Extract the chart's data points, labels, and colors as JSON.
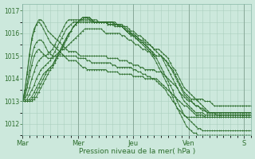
{
  "xlabel": "Pression niveau de la mer( hPa )",
  "bg_color": "#cce8dc",
  "grid_color": "#aacfbf",
  "line_color": "#2d6e2d",
  "ylim": [
    1011.5,
    1017.3
  ],
  "yticks": [
    1012,
    1013,
    1014,
    1015,
    1016,
    1017
  ],
  "x_day_labels": [
    "Mar",
    "Mer",
    "Jeu",
    "Ven",
    "S"
  ],
  "x_day_positions": [
    0,
    24,
    48,
    72,
    96
  ],
  "series": [
    [
      1013.0,
      1013.5,
      1014.2,
      1015.0,
      1015.8,
      1016.2,
      1016.4,
      1016.5,
      1016.4,
      1016.2,
      1016.0,
      1015.8,
      1015.6,
      1015.5,
      1015.4,
      1015.3,
      1015.2,
      1015.1,
      1015.0,
      1014.9,
      1014.8,
      1014.8,
      1014.8,
      1014.8,
      1014.7,
      1014.6,
      1014.5,
      1014.5,
      1014.4,
      1014.4,
      1014.4,
      1014.4,
      1014.4,
      1014.4,
      1014.4,
      1014.4,
      1014.4,
      1014.3,
      1014.3,
      1014.3,
      1014.3,
      1014.3,
      1014.2,
      1014.2,
      1014.2,
      1014.2,
      1014.2,
      1014.2,
      1014.1,
      1014.1,
      1014.1,
      1014.1,
      1014.1,
      1014.0,
      1014.0,
      1014.0,
      1014.0,
      1014.0,
      1014.0,
      1013.9,
      1013.8,
      1013.7,
      1013.6,
      1013.5,
      1013.4,
      1013.3,
      1013.2,
      1013.1,
      1013.0,
      1012.9,
      1012.8,
      1012.8,
      1012.7,
      1012.6,
      1012.5,
      1012.4,
      1012.4,
      1012.4,
      1012.4,
      1012.3,
      1012.3,
      1012.3,
      1012.3,
      1012.3,
      1012.3,
      1012.3,
      1012.3,
      1012.3,
      1012.3,
      1012.3,
      1012.3,
      1012.3,
      1012.3,
      1012.3,
      1012.3,
      1012.3,
      1012.3,
      1012.3,
      1012.3,
      1012.3
    ],
    [
      1013.0,
      1013.5,
      1014.3,
      1015.1,
      1015.7,
      1016.1,
      1016.4,
      1016.6,
      1016.6,
      1016.5,
      1016.3,
      1016.1,
      1016.0,
      1015.9,
      1015.8,
      1015.7,
      1015.6,
      1015.5,
      1015.4,
      1015.3,
      1015.2,
      1015.2,
      1015.2,
      1015.2,
      1015.1,
      1015.0,
      1015.0,
      1015.0,
      1015.0,
      1015.0,
      1015.0,
      1015.0,
      1015.0,
      1015.0,
      1015.0,
      1015.0,
      1015.0,
      1014.9,
      1014.9,
      1014.9,
      1014.9,
      1014.9,
      1014.8,
      1014.8,
      1014.8,
      1014.8,
      1014.7,
      1014.7,
      1014.6,
      1014.6,
      1014.6,
      1014.5,
      1014.5,
      1014.4,
      1014.4,
      1014.4,
      1014.4,
      1014.4,
      1014.3,
      1014.3,
      1014.3,
      1014.2,
      1014.1,
      1014.0,
      1013.9,
      1013.8,
      1013.7,
      1013.6,
      1013.4,
      1013.3,
      1013.2,
      1013.1,
      1013.0,
      1013.0,
      1012.9,
      1012.8,
      1012.8,
      1012.7,
      1012.7,
      1012.6,
      1012.5,
      1012.5,
      1012.5,
      1012.5,
      1012.5,
      1012.5,
      1012.5,
      1012.5,
      1012.5,
      1012.5,
      1012.5,
      1012.5,
      1012.5,
      1012.5,
      1012.5,
      1012.5,
      1012.5,
      1012.5,
      1012.5,
      1012.5
    ],
    [
      1013.0,
      1013.3,
      1013.8,
      1014.4,
      1015.0,
      1015.4,
      1015.6,
      1015.7,
      1015.7,
      1015.6,
      1015.4,
      1015.2,
      1015.1,
      1015.0,
      1015.0,
      1015.0,
      1015.0,
      1015.0,
      1015.0,
      1015.0,
      1015.0,
      1015.0,
      1015.0,
      1015.0,
      1014.9,
      1014.9,
      1014.9,
      1014.9,
      1014.8,
      1014.8,
      1014.7,
      1014.7,
      1014.7,
      1014.7,
      1014.7,
      1014.7,
      1014.7,
      1014.7,
      1014.7,
      1014.6,
      1014.6,
      1014.5,
      1014.5,
      1014.5,
      1014.5,
      1014.5,
      1014.5,
      1014.5,
      1014.4,
      1014.4,
      1014.3,
      1014.3,
      1014.2,
      1014.2,
      1014.1,
      1014.1,
      1014.0,
      1014.0,
      1013.9,
      1013.8,
      1013.7,
      1013.6,
      1013.5,
      1013.3,
      1013.2,
      1013.0,
      1012.9,
      1012.7,
      1012.6,
      1012.5,
      1012.4,
      1012.3,
      1012.3,
      1012.3,
      1012.3,
      1012.3,
      1012.3,
      1012.3,
      1012.3,
      1012.3,
      1012.3,
      1012.3,
      1012.3,
      1012.3,
      1012.3,
      1012.3,
      1012.3,
      1012.3,
      1012.3,
      1012.3,
      1012.3,
      1012.3,
      1012.3,
      1012.3,
      1012.3,
      1012.3,
      1012.3,
      1012.3,
      1012.3,
      1012.3
    ],
    [
      1013.0,
      1013.2,
      1013.6,
      1014.1,
      1014.6,
      1015.0,
      1015.2,
      1015.3,
      1015.2,
      1015.1,
      1015.0,
      1014.9,
      1014.9,
      1014.9,
      1015.0,
      1015.1,
      1015.2,
      1015.3,
      1015.3,
      1015.4,
      1015.5,
      1015.6,
      1015.7,
      1015.8,
      1015.9,
      1016.0,
      1016.1,
      1016.2,
      1016.2,
      1016.2,
      1016.2,
      1016.2,
      1016.2,
      1016.2,
      1016.2,
      1016.1,
      1016.0,
      1016.0,
      1016.0,
      1016.0,
      1016.0,
      1016.0,
      1016.0,
      1015.9,
      1015.9,
      1015.8,
      1015.7,
      1015.7,
      1015.6,
      1015.5,
      1015.5,
      1015.4,
      1015.3,
      1015.3,
      1015.2,
      1015.2,
      1015.1,
      1015.0,
      1015.0,
      1015.0,
      1015.0,
      1014.9,
      1014.8,
      1014.7,
      1014.5,
      1014.4,
      1014.2,
      1014.0,
      1013.8,
      1013.6,
      1013.4,
      1013.3,
      1013.2,
      1013.1,
      1013.1,
      1013.1,
      1013.1,
      1013.1,
      1013.1,
      1013.0,
      1013.0,
      1013.0,
      1012.9,
      1012.8,
      1012.8,
      1012.8,
      1012.8,
      1012.8,
      1012.8,
      1012.8,
      1012.8,
      1012.8,
      1012.8,
      1012.8,
      1012.8,
      1012.8,
      1012.8,
      1012.8,
      1012.8,
      1012.8
    ],
    [
      1013.0,
      1013.1,
      1013.3,
      1013.6,
      1014.0,
      1014.3,
      1014.6,
      1014.8,
      1014.9,
      1015.0,
      1015.0,
      1015.1,
      1015.2,
      1015.3,
      1015.5,
      1015.7,
      1015.9,
      1016.1,
      1016.3,
      1016.5,
      1016.6,
      1016.6,
      1016.6,
      1016.6,
      1016.6,
      1016.6,
      1016.6,
      1016.7,
      1016.7,
      1016.6,
      1016.6,
      1016.6,
      1016.6,
      1016.5,
      1016.5,
      1016.5,
      1016.5,
      1016.4,
      1016.4,
      1016.4,
      1016.4,
      1016.4,
      1016.3,
      1016.3,
      1016.2,
      1016.1,
      1016.1,
      1016.0,
      1015.9,
      1015.9,
      1015.8,
      1015.7,
      1015.7,
      1015.6,
      1015.5,
      1015.5,
      1015.4,
      1015.3,
      1015.3,
      1015.3,
      1015.2,
      1015.1,
      1015.0,
      1014.9,
      1014.7,
      1014.5,
      1014.4,
      1014.2,
      1014.0,
      1013.8,
      1013.6,
      1013.5,
      1013.4,
      1013.3,
      1013.2,
      1013.1,
      1013.0,
      1012.9,
      1012.8,
      1012.7,
      1012.6,
      1012.5,
      1012.5,
      1012.5,
      1012.5,
      1012.5,
      1012.5,
      1012.5,
      1012.5,
      1012.5,
      1012.5,
      1012.5,
      1012.5,
      1012.5,
      1012.5,
      1012.5,
      1012.5,
      1012.5,
      1012.5,
      1012.5
    ],
    [
      1013.0,
      1013.0,
      1013.1,
      1013.3,
      1013.5,
      1013.7,
      1014.0,
      1014.2,
      1014.4,
      1014.5,
      1014.6,
      1014.7,
      1014.8,
      1015.0,
      1015.2,
      1015.4,
      1015.6,
      1015.8,
      1016.0,
      1016.2,
      1016.3,
      1016.4,
      1016.5,
      1016.5,
      1016.5,
      1016.5,
      1016.5,
      1016.5,
      1016.5,
      1016.5,
      1016.5,
      1016.5,
      1016.5,
      1016.5,
      1016.5,
      1016.5,
      1016.5,
      1016.4,
      1016.4,
      1016.4,
      1016.3,
      1016.3,
      1016.3,
      1016.3,
      1016.2,
      1016.1,
      1016.0,
      1015.9,
      1015.9,
      1015.8,
      1015.7,
      1015.6,
      1015.6,
      1015.5,
      1015.4,
      1015.3,
      1015.2,
      1015.1,
      1015.0,
      1015.0,
      1015.0,
      1014.9,
      1014.8,
      1014.6,
      1014.5,
      1014.3,
      1014.1,
      1013.9,
      1013.7,
      1013.5,
      1013.3,
      1013.2,
      1013.1,
      1013.0,
      1012.9,
      1012.8,
      1012.8,
      1012.7,
      1012.6,
      1012.6,
      1012.5,
      1012.5,
      1012.5,
      1012.5,
      1012.4,
      1012.4,
      1012.4,
      1012.4,
      1012.4,
      1012.4,
      1012.4,
      1012.4,
      1012.4,
      1012.4,
      1012.4,
      1012.4,
      1012.4,
      1012.4,
      1012.4,
      1012.4
    ],
    [
      1013.0,
      1013.0,
      1013.0,
      1013.1,
      1013.2,
      1013.4,
      1013.6,
      1013.8,
      1014.0,
      1014.2,
      1014.3,
      1014.4,
      1014.5,
      1014.6,
      1014.8,
      1015.0,
      1015.2,
      1015.4,
      1015.6,
      1015.8,
      1016.0,
      1016.1,
      1016.3,
      1016.4,
      1016.5,
      1016.6,
      1016.6,
      1016.6,
      1016.6,
      1016.6,
      1016.5,
      1016.5,
      1016.5,
      1016.5,
      1016.5,
      1016.5,
      1016.5,
      1016.5,
      1016.5,
      1016.5,
      1016.5,
      1016.4,
      1016.4,
      1016.4,
      1016.3,
      1016.3,
      1016.2,
      1016.1,
      1016.1,
      1016.0,
      1015.9,
      1015.9,
      1015.8,
      1015.7,
      1015.6,
      1015.5,
      1015.4,
      1015.3,
      1015.2,
      1015.1,
      1015.0,
      1014.8,
      1014.6,
      1014.4,
      1014.2,
      1014.0,
      1013.8,
      1013.6,
      1013.4,
      1013.2,
      1013.0,
      1012.9,
      1012.8,
      1012.7,
      1012.6,
      1012.5,
      1012.5,
      1012.5,
      1012.5,
      1012.4,
      1012.4,
      1012.4,
      1012.4,
      1012.4,
      1012.4,
      1012.4,
      1012.4,
      1012.4,
      1012.4,
      1012.4,
      1012.4,
      1012.4,
      1012.4,
      1012.4,
      1012.4,
      1012.4,
      1012.4,
      1012.4,
      1012.4,
      1012.4
    ],
    [
      1013.0,
      1013.0,
      1013.0,
      1013.0,
      1013.1,
      1013.2,
      1013.4,
      1013.6,
      1013.8,
      1014.0,
      1014.2,
      1014.4,
      1014.5,
      1014.6,
      1014.8,
      1015.0,
      1015.2,
      1015.4,
      1015.6,
      1015.8,
      1016.0,
      1016.1,
      1016.3,
      1016.4,
      1016.5,
      1016.6,
      1016.7,
      1016.7,
      1016.7,
      1016.7,
      1016.6,
      1016.5,
      1016.5,
      1016.5,
      1016.5,
      1016.5,
      1016.5,
      1016.5,
      1016.5,
      1016.5,
      1016.4,
      1016.4,
      1016.4,
      1016.3,
      1016.3,
      1016.2,
      1016.1,
      1016.0,
      1016.0,
      1015.9,
      1015.8,
      1015.7,
      1015.6,
      1015.5,
      1015.4,
      1015.3,
      1015.2,
      1015.0,
      1014.9,
      1014.7,
      1014.5,
      1014.3,
      1014.1,
      1013.9,
      1013.7,
      1013.5,
      1013.2,
      1013.0,
      1012.8,
      1012.6,
      1012.4,
      1012.3,
      1012.2,
      1012.1,
      1012.0,
      1011.9,
      1011.8,
      1011.8,
      1011.7,
      1011.7,
      1011.7,
      1011.7,
      1011.7,
      1011.7,
      1011.7,
      1011.7,
      1011.7,
      1011.7,
      1011.7,
      1011.7,
      1011.7,
      1011.7,
      1011.7,
      1011.7,
      1011.7,
      1011.7,
      1011.7,
      1011.7,
      1011.7,
      1011.7
    ],
    [
      1013.0,
      1013.0,
      1013.0,
      1013.0,
      1013.0,
      1013.1,
      1013.2,
      1013.4,
      1013.6,
      1013.8,
      1014.0,
      1014.2,
      1014.4,
      1014.5,
      1014.7,
      1014.9,
      1015.1,
      1015.3,
      1015.5,
      1015.7,
      1015.9,
      1016.1,
      1016.3,
      1016.4,
      1016.5,
      1016.6,
      1016.7,
      1016.7,
      1016.7,
      1016.7,
      1016.6,
      1016.5,
      1016.5,
      1016.5,
      1016.5,
      1016.5,
      1016.5,
      1016.5,
      1016.5,
      1016.5,
      1016.4,
      1016.4,
      1016.3,
      1016.3,
      1016.2,
      1016.1,
      1016.0,
      1016.0,
      1015.9,
      1015.8,
      1015.7,
      1015.6,
      1015.5,
      1015.4,
      1015.3,
      1015.2,
      1015.0,
      1014.9,
      1014.7,
      1014.5,
      1014.3,
      1014.1,
      1013.9,
      1013.7,
      1013.4,
      1013.2,
      1012.9,
      1012.7,
      1012.5,
      1012.3,
      1012.1,
      1011.9,
      1011.8,
      1011.7,
      1011.6,
      1011.6,
      1011.5,
      1011.5,
      1011.5,
      1011.5,
      1011.5,
      1011.5,
      1011.5,
      1011.5,
      1011.5,
      1011.5,
      1011.5,
      1011.5,
      1011.5,
      1011.5,
      1011.5,
      1011.5,
      1011.5,
      1011.5,
      1011.5,
      1011.5,
      1011.5,
      1011.5,
      1011.5,
      1011.5
    ]
  ]
}
